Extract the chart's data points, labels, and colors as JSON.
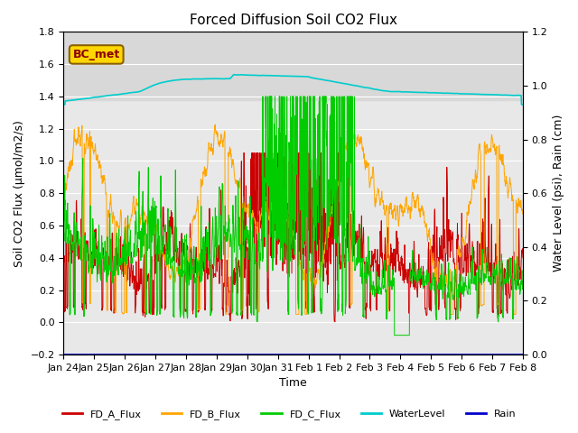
{
  "title": "Forced Diffusion Soil CO2 Flux",
  "xlabel": "Time",
  "ylabel_left": "Soil CO2 Flux (μmol/m2/s)",
  "ylabel_right": "Water Level (psi), Rain (cm)",
  "ylim_left": [
    -0.2,
    1.8
  ],
  "ylim_right": [
    0.0,
    1.2
  ],
  "xlim_days": [
    0,
    15
  ],
  "tick_labels": [
    "Jan 24",
    "Jan 25",
    "Jan 26",
    "Jan 27",
    "Jan 28",
    "Jan 29",
    "Jan 30",
    "Jan 31",
    "Feb 1",
    "Feb 2",
    "Feb 3",
    "Feb 4",
    "Feb 5",
    "Feb 6",
    "Feb 7",
    "Feb 8"
  ],
  "color_A": "#cc0000",
  "color_B": "#ffa500",
  "color_C": "#00cc00",
  "color_WL": "#00cccc",
  "color_Rain": "#0000cc",
  "color_bg": "#e8e8e8",
  "color_shade_upper": "#d8d8d8",
  "color_grid": "#ffffff",
  "legend_label_A": "FD_A_Flux",
  "legend_label_B": "FD_B_Flux",
  "legend_label_C": "FD_C_Flux",
  "legend_label_WL": "WaterLevel",
  "legend_label_Rain": "Rain",
  "bc_met_label": "BC_met",
  "shade_ymin": 1.375,
  "shade_ymax": 1.8,
  "n_points": 2000,
  "bc_color_text": "#8B0000",
  "bc_color_bg": "#FFD700",
  "bc_color_edge": "#8B6000"
}
